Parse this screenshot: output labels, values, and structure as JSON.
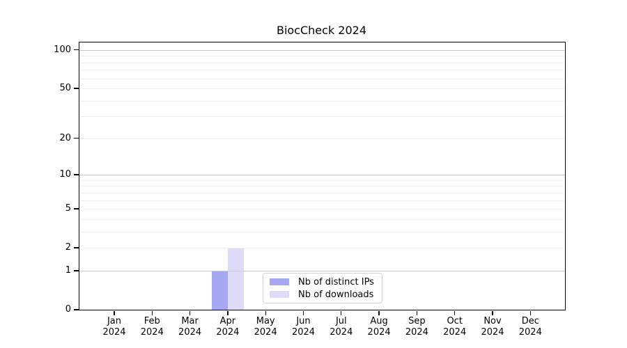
{
  "chart_data": {
    "type": "bar",
    "title": "BiocCheck 2024",
    "categories": [
      "Jan",
      "Feb",
      "Mar",
      "Apr",
      "May",
      "Jun",
      "Jul",
      "Aug",
      "Sep",
      "Oct",
      "Nov",
      "Dec"
    ],
    "x_tick_year": "2024",
    "series": [
      {
        "name": "Nb of distinct IPs",
        "color": "#a8a8f2",
        "values": [
          0,
          0,
          0,
          1,
          0,
          0,
          0,
          0,
          0,
          0,
          0,
          0
        ]
      },
      {
        "name": "Nb of downloads",
        "color": "#dcdcf8",
        "values": [
          0,
          0,
          0,
          2,
          0,
          0,
          0,
          0,
          0,
          0,
          0,
          0
        ]
      }
    ],
    "xlabel": "",
    "ylabel": "",
    "y_scale": "log1p",
    "ylim": [
      0,
      113
    ],
    "y_ticks": [
      0,
      1,
      2,
      5,
      10,
      20,
      50,
      100
    ],
    "major_gridlines": [
      1,
      10,
      100
    ],
    "minor_gridlines": [
      2,
      3,
      4,
      5,
      6,
      7,
      8,
      9,
      20,
      30,
      40,
      50,
      60,
      70,
      80,
      90
    ],
    "grid": "horizontal",
    "legend_position": "lower-center",
    "colors": {
      "major_grid": "#c8c8c8",
      "minor_grid": "#eeeeee",
      "spine": "#000000",
      "text": "#000000",
      "legend_border": "#d2d2d2",
      "background": "#ffffff"
    }
  }
}
